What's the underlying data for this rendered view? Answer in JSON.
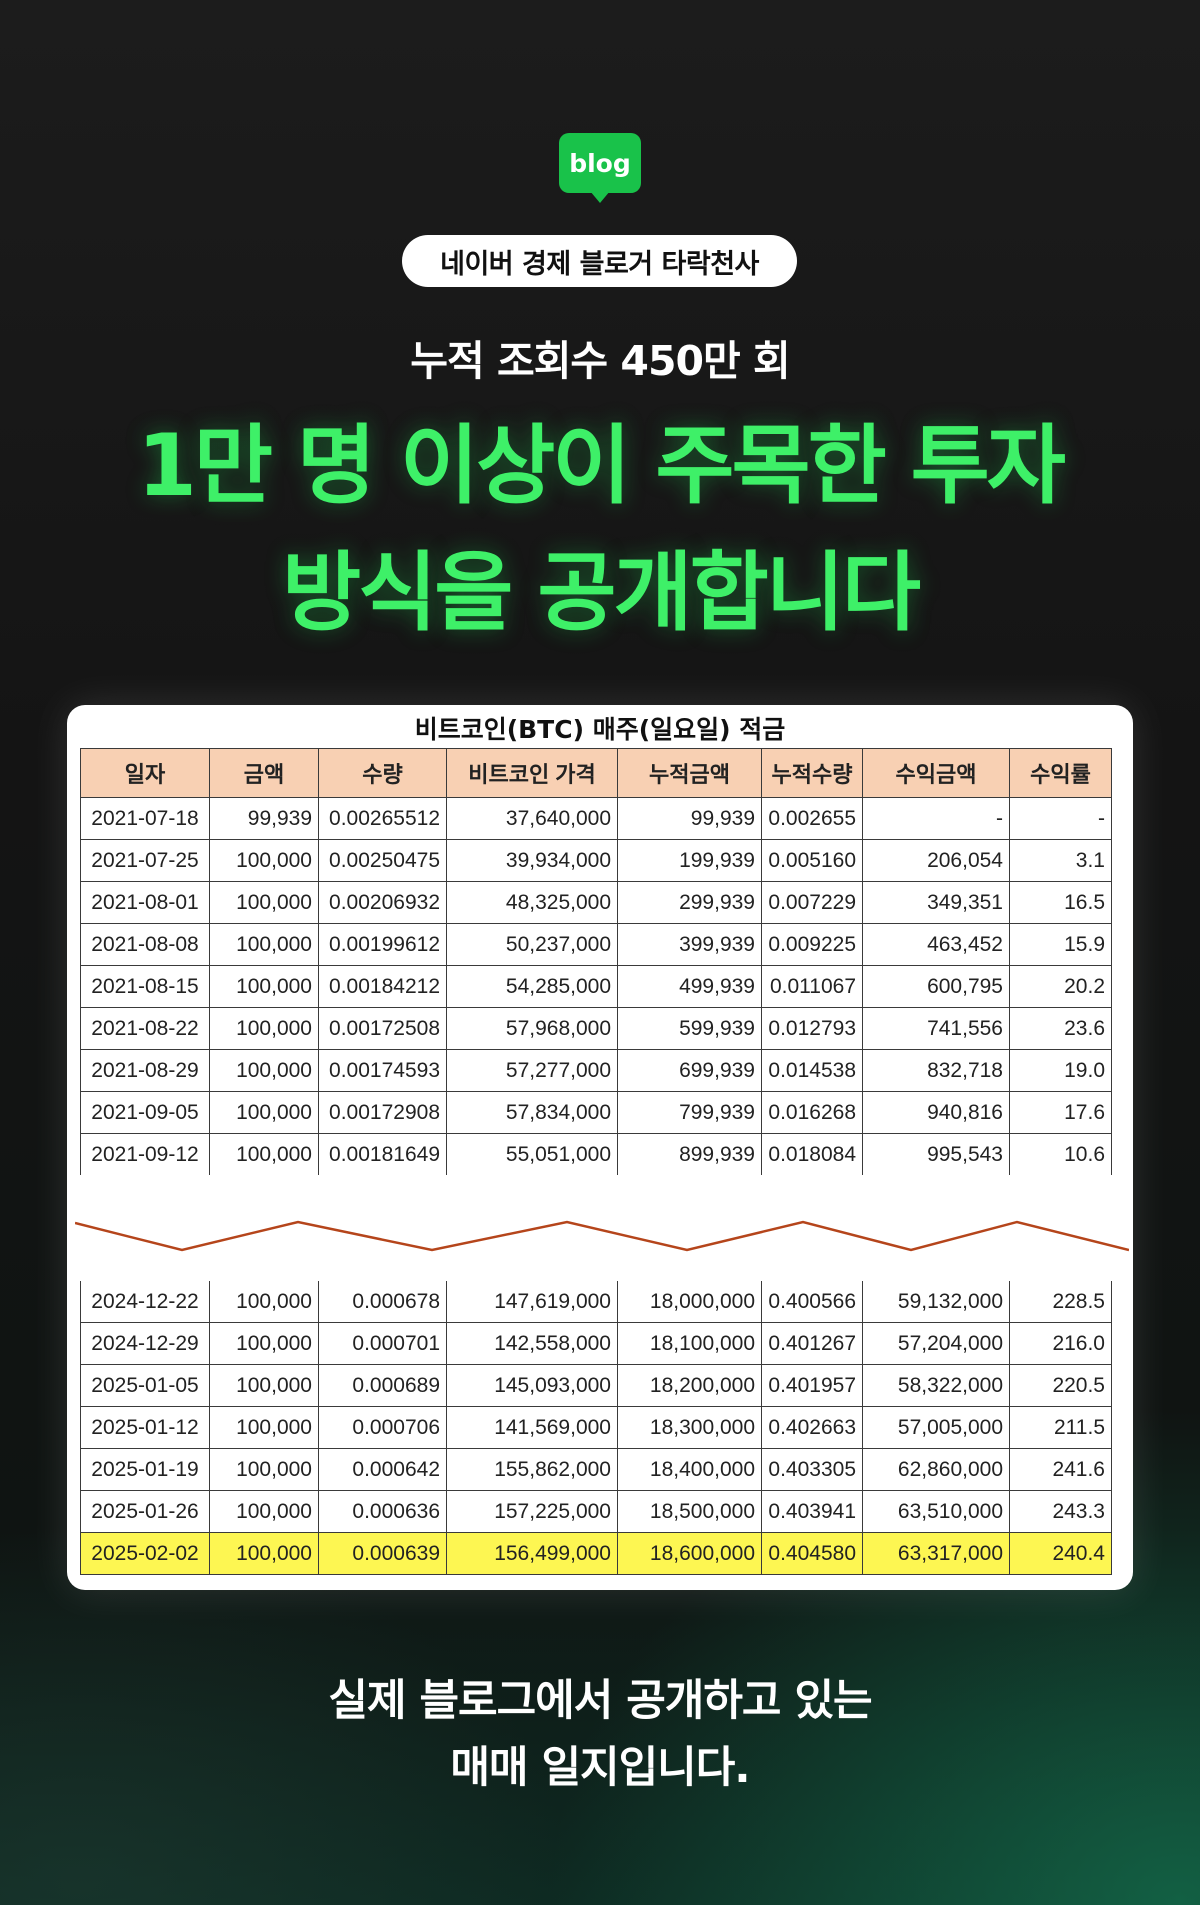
{
  "logo": {
    "text": "blog",
    "color": "#19c24a"
  },
  "pill": {
    "label": "네이버 경제 블로거 타락천사"
  },
  "subtitle": "누적 조회수 450만 회",
  "headline": {
    "line1": "1만 명 이상이 주목한 투자",
    "line2": "방식을 공개합니다",
    "color": "#3ef068"
  },
  "table": {
    "title": "비트코인(BTC) 매주(일요일) 적금",
    "columns": [
      "일자",
      "금액",
      "수량",
      "비트코인 가격",
      "누적금액",
      "누적수량",
      "수익금액",
      "수익률"
    ],
    "header_color": "#f8d0b3",
    "highlight_color": "#fdf652",
    "rows_top": [
      [
        "2021-07-18",
        "99,939",
        "0.00265512",
        "37,640,000",
        "99,939",
        "0.002655",
        "-",
        "-"
      ],
      [
        "2021-07-25",
        "100,000",
        "0.00250475",
        "39,934,000",
        "199,939",
        "0.005160",
        "206,054",
        "3.1"
      ],
      [
        "2021-08-01",
        "100,000",
        "0.00206932",
        "48,325,000",
        "299,939",
        "0.007229",
        "349,351",
        "16.5"
      ],
      [
        "2021-08-08",
        "100,000",
        "0.00199612",
        "50,237,000",
        "399,939",
        "0.009225",
        "463,452",
        "15.9"
      ],
      [
        "2021-08-15",
        "100,000",
        "0.00184212",
        "54,285,000",
        "499,939",
        "0.011067",
        "600,795",
        "20.2"
      ],
      [
        "2021-08-22",
        "100,000",
        "0.00172508",
        "57,968,000",
        "599,939",
        "0.012793",
        "741,556",
        "23.6"
      ],
      [
        "2021-08-29",
        "100,000",
        "0.00174593",
        "57,277,000",
        "699,939",
        "0.014538",
        "832,718",
        "19.0"
      ],
      [
        "2021-09-05",
        "100,000",
        "0.00172908",
        "57,834,000",
        "799,939",
        "0.016268",
        "940,816",
        "17.6"
      ],
      [
        "2021-09-12",
        "100,000",
        "0.00181649",
        "55,051,000",
        "899,939",
        "0.018084",
        "995,543",
        "10.6"
      ]
    ],
    "rows_bottom": [
      [
        "2024-12-22",
        "100,000",
        "0.000678",
        "147,619,000",
        "18,000,000",
        "0.400566",
        "59,132,000",
        "228.5"
      ],
      [
        "2024-12-29",
        "100,000",
        "0.000701",
        "142,558,000",
        "18,100,000",
        "0.401267",
        "57,204,000",
        "216.0"
      ],
      [
        "2025-01-05",
        "100,000",
        "0.000689",
        "145,093,000",
        "18,200,000",
        "0.401957",
        "58,322,000",
        "220.5"
      ],
      [
        "2025-01-12",
        "100,000",
        "0.000706",
        "141,569,000",
        "18,300,000",
        "0.402663",
        "57,005,000",
        "211.5"
      ],
      [
        "2025-01-19",
        "100,000",
        "0.000642",
        "155,862,000",
        "18,400,000",
        "0.403305",
        "62,860,000",
        "241.6"
      ],
      [
        "2025-01-26",
        "100,000",
        "0.000636",
        "157,225,000",
        "18,500,000",
        "0.403941",
        "63,510,000",
        "243.3"
      ],
      [
        "2025-02-02",
        "100,000",
        "0.000639",
        "156,499,000",
        "18,600,000",
        "0.404580",
        "63,317,000",
        "240.4"
      ]
    ],
    "break_line_color": "#b5451b"
  },
  "footer": {
    "line1": "실제 블로그에서 공개하고 있는",
    "line2": "매매 일지입니다."
  }
}
